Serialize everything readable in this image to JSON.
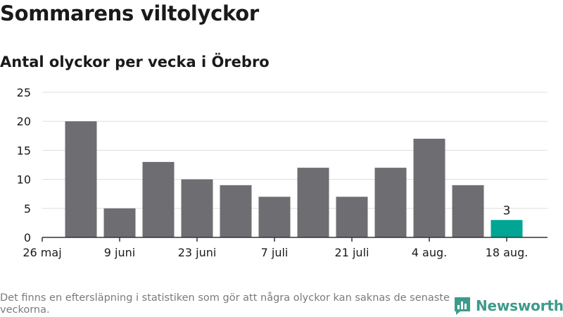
{
  "header": {
    "title": "Sommarens viltolyckor",
    "subtitle": "Antal olyckor per vecka i Örebro"
  },
  "footer": {
    "note": "Det finns en eftersläpning i statistiken som gör att några olyckor kan saknas de senaste veckorna.",
    "brand": "Newsworthy",
    "brand_color": "#3d9b8a"
  },
  "chart_data": {
    "type": "bar",
    "title": "Sommarens viltolyckor",
    "subtitle": "Antal olyckor per vecka i Örebro",
    "x_tick_labels": [
      "26 maj",
      "9 juni",
      "23 juni",
      "7 juli",
      "21 juli",
      "4 aug.",
      "18 aug."
    ],
    "categories": [
      "2019-06-03",
      "2019-06-10",
      "2019-06-17",
      "2019-06-24",
      "2019-07-01",
      "2019-07-08",
      "2019-07-15",
      "2019-07-22",
      "2019-07-29",
      "2019-08-05",
      "2019-08-12",
      "2019-08-19"
    ],
    "values": [
      20,
      5,
      13,
      10,
      9,
      7,
      12,
      7,
      12,
      17,
      9,
      3
    ],
    "highlight_index": 11,
    "highlight_label": "3",
    "ylim": [
      0,
      25
    ],
    "yticks": [
      0,
      5,
      10,
      15,
      20,
      25
    ],
    "grid": true,
    "colors": {
      "bar": "#6e6d72",
      "highlight": "#00a693",
      "grid": "#dddddd",
      "axis": "#333333"
    }
  }
}
